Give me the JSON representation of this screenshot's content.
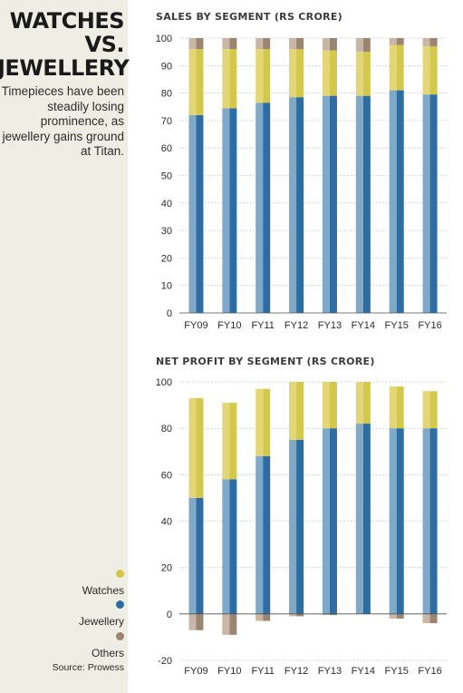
{
  "panel": {
    "title_lines": [
      "WATCHES",
      "VS.",
      "JEWELLERY"
    ],
    "subtitle": "Timepieces have been steadily losing prominence, as jewellery gains ground at Titan.",
    "legend": [
      {
        "label": "Watches",
        "color": "#d4c84c"
      },
      {
        "label": "Jewellery",
        "color": "#2e6da4"
      },
      {
        "label": "Others",
        "color": "#9b8470"
      }
    ],
    "source": "Source: Prowess"
  },
  "colors": {
    "watches": "#d4c84c",
    "jewellery": "#2e6da4",
    "jewellery_light": "#7fa9c6",
    "watches_light": "#e2d677",
    "others": "#9b8470",
    "others_light": "#c8b7a6",
    "gridline": "#bdbdbd"
  },
  "chart_data": [
    {
      "type": "bar",
      "stacked": true,
      "title": "SALES BY SEGMENT (RS CRORE)",
      "categories": [
        "FY09",
        "FY10",
        "FY11",
        "FY12",
        "FY13",
        "FY14",
        "FY15",
        "FY16"
      ],
      "series": [
        {
          "name": "Jewellery",
          "values": [
            72,
            74.5,
            76.5,
            78.5,
            79,
            79,
            81,
            79.5
          ]
        },
        {
          "name": "Watches",
          "values": [
            24,
            21.5,
            19.5,
            17.5,
            16.5,
            16,
            16.5,
            17.5
          ]
        },
        {
          "name": "Others",
          "values": [
            4,
            4,
            4,
            4,
            4.5,
            5,
            2.5,
            3
          ]
        }
      ],
      "ylim": [
        0,
        100
      ],
      "yticks": [
        0,
        10,
        20,
        30,
        40,
        50,
        60,
        70,
        80,
        90,
        100
      ],
      "grid": true
    },
    {
      "type": "bar",
      "stacked": true,
      "title": "NET PROFIT BY SEGMENT (RS CRORE)",
      "categories": [
        "FY09",
        "FY10",
        "FY11",
        "FY12",
        "FY13",
        "FY14",
        "FY15",
        "FY16"
      ],
      "series": [
        {
          "name": "Jewellery",
          "values": [
            50,
            58,
            68,
            75,
            80,
            82,
            80,
            80
          ]
        },
        {
          "name": "Watches",
          "values": [
            43,
            33,
            29,
            25,
            20,
            18,
            18,
            16
          ]
        },
        {
          "name": "Others",
          "values": [
            -7,
            -9,
            -3,
            -1,
            -0.5,
            0,
            -2,
            -4
          ]
        }
      ],
      "ylim": [
        -20,
        100
      ],
      "yticks": [
        -20,
        0,
        20,
        40,
        60,
        80,
        100
      ],
      "grid": true
    }
  ]
}
